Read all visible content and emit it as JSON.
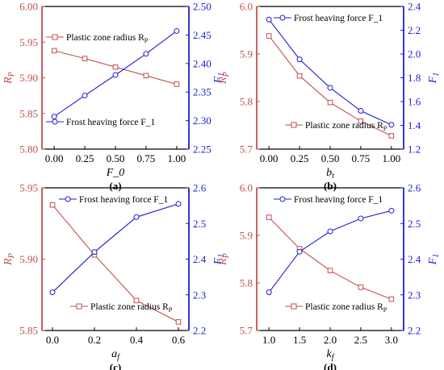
{
  "colors": {
    "left": "#c0504d",
    "right": "#1f1fd1",
    "axis": "#000000"
  },
  "chart_data": [
    {
      "type": "line",
      "panel_label": "(a)",
      "xlabel": "F_0",
      "ylabel_left": "R_P",
      "ylabel_right": "F_1",
      "x": [
        0.0,
        0.25,
        0.5,
        0.75,
        1.0
      ],
      "x_tick_labels": [
        "0.00",
        "0.25",
        "0.50",
        "0.75",
        "1.00"
      ],
      "xlim": [
        -0.1,
        1.1
      ],
      "ylim_left": [
        5.8,
        6.0
      ],
      "yticks_left": [
        "5.80",
        "5.85",
        "5.90",
        "5.95",
        "6.00"
      ],
      "ylim_right": [
        2.25,
        2.5
      ],
      "yticks_right": [
        "2.25",
        "2.30",
        "2.35",
        "2.40",
        "2.45",
        "2.50"
      ],
      "series": [
        {
          "name": "Plastic zone radius R_P",
          "axis": "left",
          "marker": "square",
          "values": [
            5.938,
            5.927,
            5.915,
            5.903,
            5.891
          ]
        },
        {
          "name": "Frost heaving force F_1",
          "axis": "right",
          "marker": "circle",
          "values": [
            2.307,
            2.344,
            2.38,
            2.417,
            2.457
          ]
        }
      ],
      "legend": [
        {
          "text": "Plastic zone radius R",
          "sub": "P",
          "series": 0,
          "placement": "top-left"
        },
        {
          "text": "Frost heaving force F_1",
          "sub": "",
          "series": 1,
          "placement": "bottom-left"
        }
      ]
    },
    {
      "type": "line",
      "panel_label": "(b)",
      "xlabel": "b",
      "xlabel_sub": "t",
      "ylabel_left": "R_P",
      "ylabel_right": "F_1",
      "x": [
        0.0,
        0.25,
        0.5,
        0.75,
        1.0
      ],
      "x_tick_labels": [
        "0.00",
        "0.25",
        "0.50",
        "0.75",
        "1.00"
      ],
      "xlim": [
        -0.1,
        1.1
      ],
      "ylim_left": [
        5.7,
        6.0
      ],
      "yticks_left": [
        "5.7",
        "5.8",
        "5.9",
        "6.0"
      ],
      "ylim_right": [
        1.2,
        2.4
      ],
      "yticks_right": [
        "1.2",
        "1.4",
        "1.6",
        "1.8",
        "2.0",
        "2.2",
        "2.4"
      ],
      "series": [
        {
          "name": "Plastic zone radius R_P",
          "axis": "left",
          "marker": "square",
          "values": [
            5.938,
            5.854,
            5.798,
            5.759,
            5.728
          ]
        },
        {
          "name": "Frost heaving force F_1",
          "axis": "right",
          "marker": "circle",
          "values": [
            2.29,
            1.955,
            1.716,
            1.522,
            1.405
          ]
        }
      ],
      "legend": [
        {
          "text": "Plastic zone radius R",
          "sub": "P",
          "series": 0,
          "placement": "bottom-right"
        },
        {
          "text": "Frost heaving force F_1",
          "sub": "",
          "series": 1,
          "placement": "top-right"
        }
      ]
    },
    {
      "type": "line",
      "panel_label": "(c)",
      "xlabel": "a",
      "xlabel_sub": "f",
      "ylabel_left": "R_P",
      "ylabel_right": "F_1",
      "x": [
        0.0,
        0.2,
        0.4,
        0.6
      ],
      "x_tick_labels": [
        "0.0",
        "0.2",
        "0.4",
        "0.6"
      ],
      "xlim": [
        -0.05,
        0.65
      ],
      "ylim_left": [
        5.85,
        5.95
      ],
      "yticks_left": [
        "5.85",
        "5.90",
        "5.95"
      ],
      "ylim_right": [
        2.2,
        2.6
      ],
      "yticks_right": [
        "2.2",
        "2.3",
        "2.4",
        "2.5",
        "2.6"
      ],
      "series": [
        {
          "name": "Plastic zone radius R_P",
          "axis": "left",
          "marker": "square",
          "values": [
            5.938,
            5.903,
            5.871,
            5.856
          ]
        },
        {
          "name": "Frost heaving force F_1",
          "axis": "right",
          "marker": "circle",
          "values": [
            2.307,
            2.42,
            2.518,
            2.555
          ]
        }
      ],
      "legend": [
        {
          "text": "Plastic zone radius R",
          "sub": "P",
          "series": 0,
          "placement": "bottom-right"
        },
        {
          "text": "Frost heaving force F_1",
          "sub": "",
          "series": 1,
          "placement": "top-right"
        }
      ]
    },
    {
      "type": "line",
      "panel_label": "(d)",
      "xlabel": "k",
      "xlabel_sub": "f",
      "ylabel_left": "R_P",
      "ylabel_right": "F_1",
      "x": [
        1.0,
        1.5,
        2.0,
        2.5,
        3.0
      ],
      "x_tick_labels": [
        "1.0",
        "1.5",
        "2.0",
        "2.5",
        "3.0"
      ],
      "xlim": [
        0.8,
        3.2
      ],
      "ylim_left": [
        5.7,
        6.0
      ],
      "yticks_left": [
        "5.7",
        "5.8",
        "5.9",
        "6.0"
      ],
      "ylim_right": [
        2.2,
        2.6
      ],
      "yticks_right": [
        "2.2",
        "2.3",
        "2.4",
        "2.5",
        "2.6"
      ],
      "series": [
        {
          "name": "Plastic zone radius R_P",
          "axis": "left",
          "marker": "square",
          "values": [
            5.938,
            5.872,
            5.826,
            5.791,
            5.766
          ]
        },
        {
          "name": "Frost heaving force F_1",
          "axis": "right",
          "marker": "circle",
          "values": [
            2.307,
            2.421,
            2.478,
            2.514,
            2.536
          ]
        }
      ],
      "legend": [
        {
          "text": "Plastic zone radius R",
          "sub": "P",
          "series": 0,
          "placement": "bottom-right"
        },
        {
          "text": "Frost heaving force F_1",
          "sub": "",
          "series": 1,
          "placement": "top-right"
        }
      ]
    }
  ]
}
